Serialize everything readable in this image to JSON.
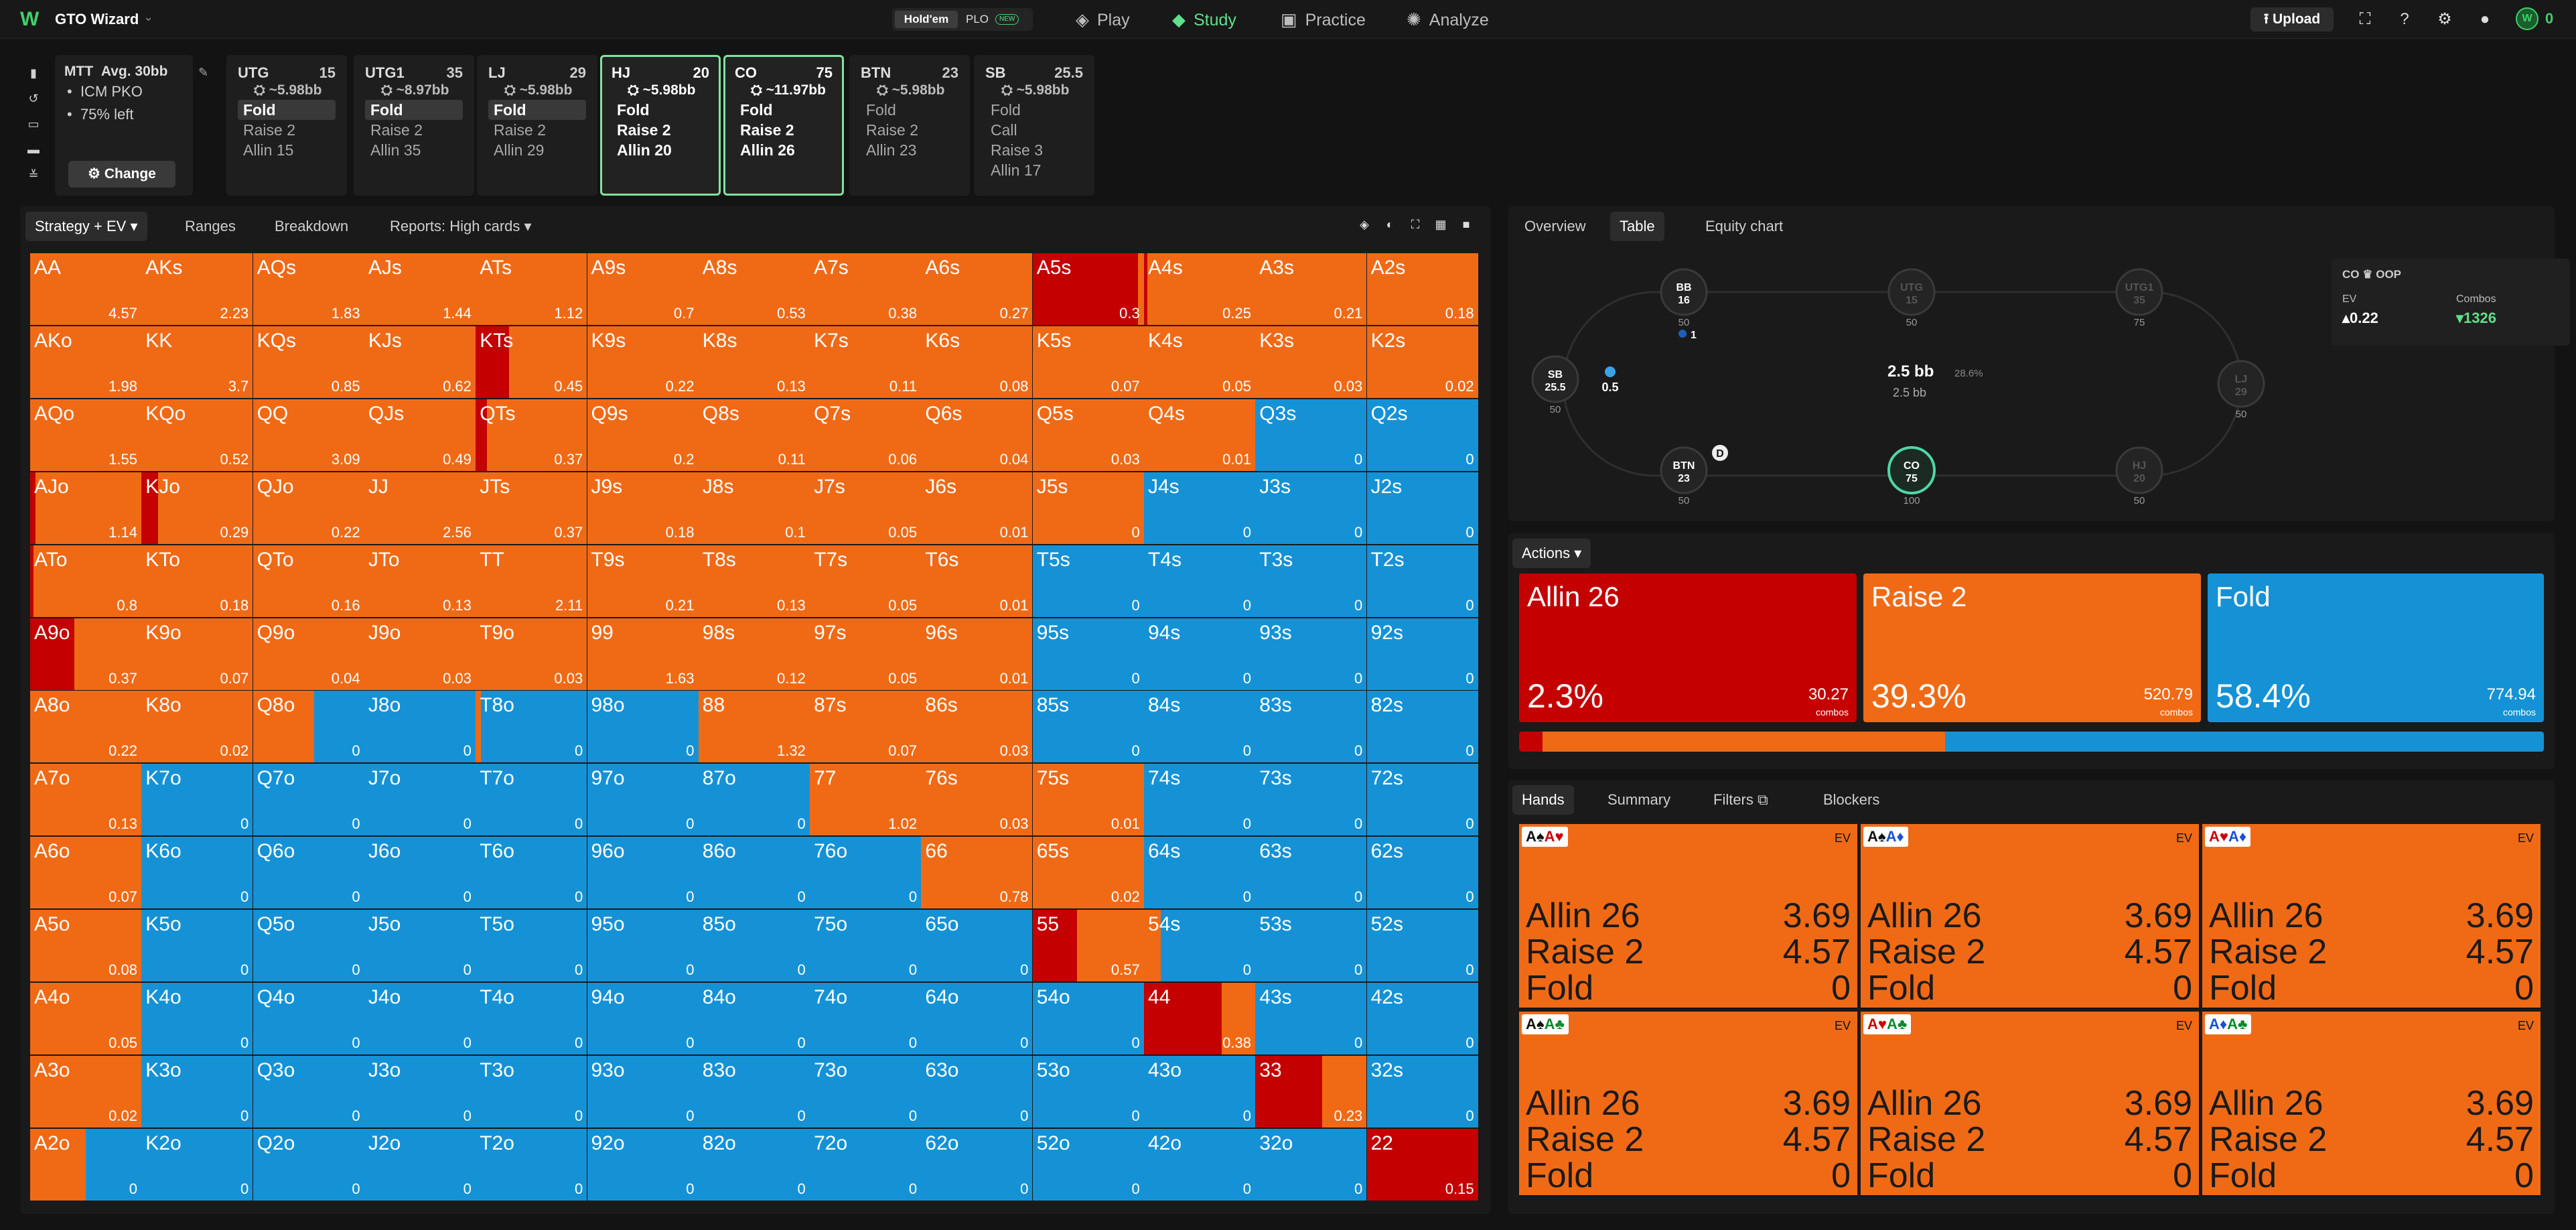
{
  "app": {
    "name": "GTO Wizard"
  },
  "game_toggle": {
    "holdem": "Hold'em",
    "plo": "PLO",
    "new_badge": "NEW"
  },
  "nav": [
    {
      "label": "Play",
      "icon": "play-icon"
    },
    {
      "label": "Study",
      "icon": "graduation-cap-icon",
      "active": true
    },
    {
      "label": "Practice",
      "icon": "gamepad-icon"
    },
    {
      "label": "Analyze",
      "icon": "analyze-icon"
    }
  ],
  "toolbar": {
    "upload": "Upload",
    "coins": "0"
  },
  "mtt": {
    "title": "MTT",
    "avg": "Avg. 30bb",
    "items": [
      "ICM PKO",
      "75% left"
    ],
    "change": "Change"
  },
  "positions": [
    {
      "name": "UTG",
      "stack": "15",
      "bb": "~5.98bb",
      "actions": [
        "Fold",
        "Raise 2",
        "Allin 15"
      ],
      "selected": 0
    },
    {
      "name": "UTG1",
      "stack": "35",
      "bb": "~8.97bb",
      "actions": [
        "Fold",
        "Raise 2",
        "Allin 35"
      ],
      "selected": 0
    },
    {
      "name": "LJ",
      "stack": "29",
      "bb": "~5.98bb",
      "actions": [
        "Fold",
        "Raise 2",
        "Allin 29"
      ],
      "selected": 0
    },
    {
      "name": "HJ",
      "stack": "20",
      "bb": "~5.98bb",
      "actions": [
        "Fold",
        "Raise 2",
        "Allin 20"
      ],
      "selected": 0,
      "highlight": true
    },
    {
      "name": "CO",
      "stack": "75",
      "bb": "~11.97bb",
      "actions": [
        "Fold",
        "Raise 2",
        "Allin 26"
      ],
      "selected": -1,
      "highlight": true
    },
    {
      "name": "BTN",
      "stack": "23",
      "bb": "~5.98bb",
      "actions": [
        "Fold",
        "Raise 2",
        "Allin 23"
      ],
      "selected": -1
    },
    {
      "name": "SB",
      "stack": "25.5",
      "bb": "~5.98bb",
      "actions": [
        "Fold",
        "Call",
        "Raise 3",
        "Allin 17"
      ],
      "selected": -1
    }
  ],
  "grid_tabs": {
    "strategy": "Strategy + EV",
    "ranges": "Ranges",
    "breakdown": "Breakdown",
    "reports": "Reports: High cards"
  },
  "colors": {
    "allin": "#c40000",
    "raise": "#f06a16",
    "fold": "#1592d6"
  },
  "grid": [
    [
      [
        "AA",
        "4.57",
        "R"
      ],
      [
        "AKs",
        "2.23",
        "R"
      ],
      [
        "AQs",
        "1.83",
        "R"
      ],
      [
        "AJs",
        "1.44",
        "R"
      ],
      [
        "ATs",
        "1.12",
        "R"
      ],
      [
        "A9s",
        "0.7",
        "R"
      ],
      [
        "A8s",
        "0.53",
        "R"
      ],
      [
        "A7s",
        "0.38",
        "R"
      ],
      [
        "A6s",
        "0.27",
        "R"
      ],
      [
        "A5s",
        "0.3",
        "A95R05"
      ],
      [
        "A4s",
        "0.25",
        "A03R97"
      ],
      [
        "A3s",
        "0.21",
        "R"
      ],
      [
        "A2s",
        "0.18",
        "R"
      ]
    ],
    [
      [
        "AKo",
        "1.98",
        "R"
      ],
      [
        "KK",
        "3.7",
        "R"
      ],
      [
        "KQs",
        "0.85",
        "R"
      ],
      [
        "KJs",
        "0.62",
        "R"
      ],
      [
        "KTs",
        "0.45",
        "A30R70"
      ],
      [
        "K9s",
        "0.22",
        "R"
      ],
      [
        "K8s",
        "0.13",
        "R"
      ],
      [
        "K7s",
        "0.11",
        "R"
      ],
      [
        "K6s",
        "0.08",
        "R"
      ],
      [
        "K5s",
        "0.07",
        "R"
      ],
      [
        "K4s",
        "0.05",
        "R"
      ],
      [
        "K3s",
        "0.03",
        "R"
      ],
      [
        "K2s",
        "0.02",
        "R"
      ]
    ],
    [
      [
        "AQo",
        "1.55",
        "R"
      ],
      [
        "KQo",
        "0.52",
        "R"
      ],
      [
        "QQ",
        "3.09",
        "R"
      ],
      [
        "QJs",
        "0.49",
        "R"
      ],
      [
        "QTs",
        "0.37",
        "A10R90"
      ],
      [
        "Q9s",
        "0.2",
        "R"
      ],
      [
        "Q8s",
        "0.11",
        "R"
      ],
      [
        "Q7s",
        "0.06",
        "R"
      ],
      [
        "Q6s",
        "0.04",
        "R"
      ],
      [
        "Q5s",
        "0.03",
        "R"
      ],
      [
        "Q4s",
        "0.01",
        "R"
      ],
      [
        "Q3s",
        "0",
        "F"
      ],
      [
        "Q2s",
        "0",
        "F"
      ]
    ],
    [
      [
        "AJo",
        "1.14",
        "A05R95"
      ],
      [
        "KJo",
        "0.29",
        "A15R85"
      ],
      [
        "QJo",
        "0.22",
        "R"
      ],
      [
        "JJ",
        "2.56",
        "R"
      ],
      [
        "JTs",
        "0.37",
        "R"
      ],
      [
        "J9s",
        "0.18",
        "R"
      ],
      [
        "J8s",
        "0.1",
        "R"
      ],
      [
        "J7s",
        "0.05",
        "R"
      ],
      [
        "J6s",
        "0.01",
        "R"
      ],
      [
        "J5s",
        "0",
        "R"
      ],
      [
        "J4s",
        "0",
        "F"
      ],
      [
        "J3s",
        "0",
        "F"
      ],
      [
        "J2s",
        "0",
        "F"
      ]
    ],
    [
      [
        "ATo",
        "0.8",
        "A03R97"
      ],
      [
        "KTo",
        "0.18",
        "R"
      ],
      [
        "QTo",
        "0.16",
        "R"
      ],
      [
        "JTo",
        "0.13",
        "R"
      ],
      [
        "TT",
        "2.11",
        "R"
      ],
      [
        "T9s",
        "0.21",
        "R"
      ],
      [
        "T8s",
        "0.13",
        "R"
      ],
      [
        "T7s",
        "0.05",
        "R"
      ],
      [
        "T6s",
        "0.01",
        "R"
      ],
      [
        "T5s",
        "0",
        "F"
      ],
      [
        "T4s",
        "0",
        "F"
      ],
      [
        "T3s",
        "0",
        "F"
      ],
      [
        "T2s",
        "0",
        "F"
      ]
    ],
    [
      [
        "A9o",
        "0.37",
        "A40R60"
      ],
      [
        "K9o",
        "0.07",
        "R"
      ],
      [
        "Q9o",
        "0.04",
        "R"
      ],
      [
        "J9o",
        "0.03",
        "R"
      ],
      [
        "T9o",
        "0.03",
        "R"
      ],
      [
        "99",
        "1.63",
        "R"
      ],
      [
        "98s",
        "0.12",
        "R"
      ],
      [
        "97s",
        "0.05",
        "R"
      ],
      [
        "96s",
        "0.01",
        "R"
      ],
      [
        "95s",
        "0",
        "F"
      ],
      [
        "94s",
        "0",
        "F"
      ],
      [
        "93s",
        "0",
        "F"
      ],
      [
        "92s",
        "0",
        "F"
      ]
    ],
    [
      [
        "A8o",
        "0.22",
        "R"
      ],
      [
        "K8o",
        "0.02",
        "R"
      ],
      [
        "Q8o",
        "0",
        "R55F45"
      ],
      [
        "J8o",
        "0",
        "F"
      ],
      [
        "T8o",
        "0",
        "R05F95"
      ],
      [
        "98o",
        "0",
        "F"
      ],
      [
        "88",
        "1.32",
        "R"
      ],
      [
        "87s",
        "0.07",
        "R"
      ],
      [
        "86s",
        "0.03",
        "R"
      ],
      [
        "85s",
        "0",
        "F"
      ],
      [
        "84s",
        "0",
        "F"
      ],
      [
        "83s",
        "0",
        "F"
      ],
      [
        "82s",
        "0",
        "F"
      ]
    ],
    [
      [
        "A7o",
        "0.13",
        "R"
      ],
      [
        "K7o",
        "0",
        "F"
      ],
      [
        "Q7o",
        "0",
        "F"
      ],
      [
        "J7o",
        "0",
        "F"
      ],
      [
        "T7o",
        "0",
        "F"
      ],
      [
        "97o",
        "0",
        "F"
      ],
      [
        "87o",
        "0",
        "F"
      ],
      [
        "77",
        "1.02",
        "R"
      ],
      [
        "76s",
        "0.03",
        "R"
      ],
      [
        "75s",
        "0.01",
        "R"
      ],
      [
        "74s",
        "0",
        "F"
      ],
      [
        "73s",
        "0",
        "F"
      ],
      [
        "72s",
        "0",
        "F"
      ]
    ],
    [
      [
        "A6o",
        "0.07",
        "R"
      ],
      [
        "K6o",
        "0",
        "F"
      ],
      [
        "Q6o",
        "0",
        "F"
      ],
      [
        "J6o",
        "0",
        "F"
      ],
      [
        "T6o",
        "0",
        "F"
      ],
      [
        "96o",
        "0",
        "F"
      ],
      [
        "86o",
        "0",
        "F"
      ],
      [
        "76o",
        "0",
        "F"
      ],
      [
        "66",
        "0.78",
        "R"
      ],
      [
        "65s",
        "0.02",
        "R"
      ],
      [
        "64s",
        "0",
        "F"
      ],
      [
        "63s",
        "0",
        "F"
      ],
      [
        "62s",
        "0",
        "F"
      ]
    ],
    [
      [
        "A5o",
        "0.08",
        "R"
      ],
      [
        "K5o",
        "0",
        "F"
      ],
      [
        "Q5o",
        "0",
        "F"
      ],
      [
        "J5o",
        "0",
        "F"
      ],
      [
        "T5o",
        "0",
        "F"
      ],
      [
        "95o",
        "0",
        "F"
      ],
      [
        "85o",
        "0",
        "F"
      ],
      [
        "75o",
        "0",
        "F"
      ],
      [
        "65o",
        "0",
        "F"
      ],
      [
        "55",
        "0.57",
        "A40R60"
      ],
      [
        "54s",
        "0",
        "R15F85"
      ],
      [
        "53s",
        "0",
        "F"
      ],
      [
        "52s",
        "0",
        "F"
      ]
    ],
    [
      [
        "A4o",
        "0.05",
        "R"
      ],
      [
        "K4o",
        "0",
        "F"
      ],
      [
        "Q4o",
        "0",
        "F"
      ],
      [
        "J4o",
        "0",
        "F"
      ],
      [
        "T4o",
        "0",
        "F"
      ],
      [
        "94o",
        "0",
        "F"
      ],
      [
        "84o",
        "0",
        "F"
      ],
      [
        "74o",
        "0",
        "F"
      ],
      [
        "64o",
        "0",
        "F"
      ],
      [
        "54o",
        "0",
        "F"
      ],
      [
        "44",
        "0.38",
        "A70R30"
      ],
      [
        "43s",
        "0",
        "F"
      ],
      [
        "42s",
        "0",
        "F"
      ]
    ],
    [
      [
        "A3o",
        "0.02",
        "R"
      ],
      [
        "K3o",
        "0",
        "F"
      ],
      [
        "Q3o",
        "0",
        "F"
      ],
      [
        "J3o",
        "0",
        "F"
      ],
      [
        "T3o",
        "0",
        "F"
      ],
      [
        "93o",
        "0",
        "F"
      ],
      [
        "83o",
        "0",
        "F"
      ],
      [
        "73o",
        "0",
        "F"
      ],
      [
        "63o",
        "0",
        "F"
      ],
      [
        "53o",
        "0",
        "F"
      ],
      [
        "43o",
        "0",
        "F"
      ],
      [
        "33",
        "0.23",
        "A60R40"
      ],
      [
        "32s",
        "0",
        "F"
      ]
    ],
    [
      [
        "A2o",
        "0",
        "R50F50"
      ],
      [
        "K2o",
        "0",
        "F"
      ],
      [
        "Q2o",
        "0",
        "F"
      ],
      [
        "J2o",
        "0",
        "F"
      ],
      [
        "T2o",
        "0",
        "F"
      ],
      [
        "92o",
        "0",
        "F"
      ],
      [
        "82o",
        "0",
        "F"
      ],
      [
        "72o",
        "0",
        "F"
      ],
      [
        "62o",
        "0",
        "F"
      ],
      [
        "52o",
        "0",
        "F"
      ],
      [
        "42o",
        "0",
        "F"
      ],
      [
        "32o",
        "0",
        "F"
      ],
      [
        "22",
        "0.15",
        "A"
      ]
    ]
  ],
  "right_tabs": {
    "overview": "Overview",
    "table": "Table",
    "equity": "Equity chart"
  },
  "table": {
    "pot": "2.5 bb",
    "pot_pct": "28.6%",
    "pot_sub": "2.5 bb",
    "sb_bet": "0.5",
    "bb_bet": "1",
    "dealer": "D",
    "seats": [
      {
        "name": "BB",
        "stack": "16",
        "sub": "50"
      },
      {
        "name": "UTG",
        "stack": "15",
        "sub": "50"
      },
      {
        "name": "UTG1",
        "stack": "35",
        "sub": "75"
      },
      {
        "name": "LJ",
        "stack": "29",
        "sub": "50"
      },
      {
        "name": "HJ",
        "stack": "20",
        "sub": "50"
      },
      {
        "name": "CO",
        "stack": "75",
        "sub": "100"
      },
      {
        "name": "BTN",
        "stack": "23",
        "sub": "50"
      },
      {
        "name": "SB",
        "stack": "25.5",
        "sub": "50"
      }
    ],
    "ev": {
      "title": "CO",
      "tag": "OOP",
      "ev_label": "EV",
      "ev_value": "0.22",
      "combos_label": "Combos",
      "combos_value": "1326"
    }
  },
  "actions": {
    "header": "Actions",
    "items": [
      {
        "name": "Allin 26",
        "pct": "2.3%",
        "combos": "30.27",
        "share": 0.023
      },
      {
        "name": "Raise 2",
        "pct": "39.3%",
        "combos": "520.79",
        "share": 0.393
      },
      {
        "name": "Fold",
        "pct": "58.4%",
        "combos": "774.94",
        "share": 0.584
      }
    ],
    "combos_label": "combos"
  },
  "hands_tabs": {
    "hands": "Hands",
    "summary": "Summary",
    "filters": "Filters",
    "blockers": "Blockers"
  },
  "hands": [
    {
      "cards": [
        [
          "A",
          "♠",
          "bk"
        ],
        [
          "A",
          "♥",
          "rd"
        ]
      ]
    },
    {
      "cards": [
        [
          "A",
          "♠",
          "bk"
        ],
        [
          "A",
          "♦",
          "bl"
        ]
      ]
    },
    {
      "cards": [
        [
          "A",
          "♥",
          "rd"
        ],
        [
          "A",
          "♦",
          "bl"
        ]
      ]
    },
    {
      "cards": [
        [
          "A",
          "♠",
          "bk"
        ],
        [
          "A",
          "♣",
          "gr"
        ]
      ]
    },
    {
      "cards": [
        [
          "A",
          "♥",
          "rd"
        ],
        [
          "A",
          "♣",
          "gr"
        ]
      ]
    },
    {
      "cards": [
        [
          "A",
          "♦",
          "bl"
        ],
        [
          "A",
          "♣",
          "gr"
        ]
      ]
    }
  ],
  "hand_rows": [
    {
      "label": "Allin 26",
      "ev": "3.69"
    },
    {
      "label": "Raise 2",
      "ev": "4.57"
    },
    {
      "label": "Fold",
      "ev": "0"
    }
  ],
  "hand_ev_label": "EV"
}
